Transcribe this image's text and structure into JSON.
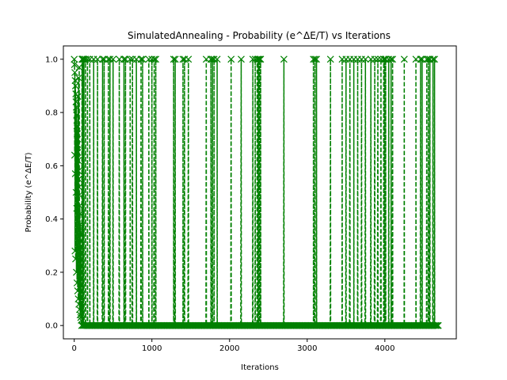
{
  "chart_data": {
    "type": "line",
    "title": "SimulatedAnnealing - Probability (e^ΔE/T) vs Iterations",
    "xlabel": "Iterations",
    "ylabel": "Probability (e^ΔE/T)",
    "xlim": [
      -140,
      4920
    ],
    "ylim": [
      -0.05,
      1.05
    ],
    "xticks": [
      0,
      1000,
      2000,
      3000,
      4000
    ],
    "yticks": [
      0.0,
      0.2,
      0.4,
      0.6,
      0.8,
      1.0
    ],
    "grid": false,
    "series": [
      {
        "color": "#008000",
        "marker": "x",
        "linestyle": "dashed",
        "spikes_at_probability_1": [
          100,
          105,
          110,
          115,
          125,
          145,
          170,
          200,
          250,
          300,
          365,
          385,
          440,
          460,
          500,
          580,
          640,
          660,
          720,
          750,
          800,
          860,
          880,
          960,
          1000,
          1030,
          1050,
          1280,
          1300,
          1400,
          1420,
          1470,
          1700,
          1760,
          1780,
          1800,
          1840,
          2020,
          2150,
          2300,
          2330,
          2355,
          2370,
          2385,
          2400,
          2700,
          3080,
          3100,
          3120,
          3300,
          3450,
          3500,
          3550,
          3600,
          3650,
          3700,
          3750,
          3820,
          3870,
          3910,
          3950,
          3985,
          4000,
          4010,
          4050,
          4080,
          4100,
          4250,
          4400,
          4460,
          4480,
          4540,
          4560,
          4580,
          4620,
          4640
        ],
        "early_points": [
          {
            "x": 0,
            "y": 1.0
          },
          {
            "x": 4,
            "y": 0.98
          },
          {
            "x": 8,
            "y": 0.95
          },
          {
            "x": 12,
            "y": 0.92
          },
          {
            "x": 16,
            "y": 0.9
          },
          {
            "x": 20,
            "y": 0.87
          },
          {
            "x": 22,
            "y": 0.84
          },
          {
            "x": 26,
            "y": 0.82
          },
          {
            "x": 30,
            "y": 0.79
          },
          {
            "x": 34,
            "y": 0.75
          },
          {
            "x": 38,
            "y": 0.72
          },
          {
            "x": 42,
            "y": 0.68
          },
          {
            "x": 46,
            "y": 0.65
          },
          {
            "x": 50,
            "y": 0.62
          },
          {
            "x": 54,
            "y": 0.58
          },
          {
            "x": 58,
            "y": 0.55
          },
          {
            "x": 62,
            "y": 0.52
          },
          {
            "x": 66,
            "y": 0.49
          },
          {
            "x": 70,
            "y": 0.45
          },
          {
            "x": 74,
            "y": 0.42
          },
          {
            "x": 78,
            "y": 0.38
          },
          {
            "x": 82,
            "y": 0.35
          },
          {
            "x": 86,
            "y": 0.3
          },
          {
            "x": 10,
            "y": 0.28
          },
          {
            "x": 18,
            "y": 0.25
          },
          {
            "x": 28,
            "y": 0.2
          },
          {
            "x": 36,
            "y": 0.16
          },
          {
            "x": 44,
            "y": 0.13
          },
          {
            "x": 52,
            "y": 0.1
          },
          {
            "x": 60,
            "y": 0.08
          },
          {
            "x": 68,
            "y": 0.06
          },
          {
            "x": 76,
            "y": 0.04
          },
          {
            "x": 84,
            "y": 0.03
          },
          {
            "x": 90,
            "y": 0.02
          },
          {
            "x": 6,
            "y": 0.64
          },
          {
            "x": 14,
            "y": 0.57
          },
          {
            "x": 24,
            "y": 0.5
          },
          {
            "x": 32,
            "y": 0.44
          },
          {
            "x": 40,
            "y": 0.72
          },
          {
            "x": 48,
            "y": 0.86
          },
          {
            "x": 56,
            "y": 0.93
          },
          {
            "x": 64,
            "y": 0.97
          }
        ],
        "baseline_start": 0,
        "baseline_end": 4700,
        "baseline_step": 8,
        "baseline_y": 0.0
      }
    ]
  }
}
